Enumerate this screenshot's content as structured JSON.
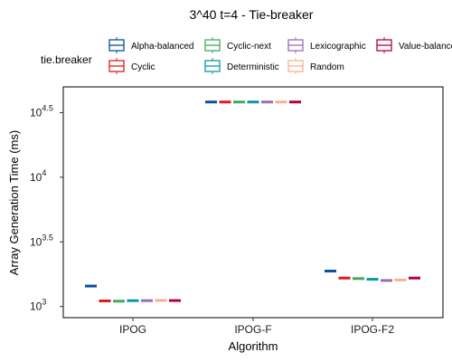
{
  "chart_data": {
    "type": "box",
    "title": "3^40 t=4 - Tie-breaker",
    "xlabel": "Algorithm",
    "ylabel": "Array Generation Time (ms)",
    "yscale": "log10",
    "ylim_ms": [
      820,
      50000
    ],
    "yticks": [
      {
        "value": 1000,
        "base": "10",
        "exp": "3"
      },
      {
        "value": 3162.28,
        "base": "10",
        "exp": "3.5"
      },
      {
        "value": 10000,
        "base": "10",
        "exp": "4"
      },
      {
        "value": 31622.78,
        "base": "10",
        "exp": "4.5"
      }
    ],
    "categories": [
      "IPOG",
      "IPOG-F",
      "IPOG-F2"
    ],
    "legend": {
      "title": "tie.breaker",
      "position": "top",
      "entries": [
        "Alpha-balanced",
        "Cyclic",
        "Cyclic-next",
        "Deterministic",
        "Lexicographic",
        "Random",
        "Value-balanced"
      ]
    },
    "series": [
      {
        "name": "Alpha-balanced",
        "color": "#08519c",
        "values": [
          1440,
          38200,
          1880
        ]
      },
      {
        "name": "Cyclic",
        "color": "#e31a1c",
        "values": [
          1105,
          38200,
          1660
        ]
      },
      {
        "name": "Cyclic-next",
        "color": "#41ab5d",
        "values": [
          1100,
          38200,
          1645
        ]
      },
      {
        "name": "Deterministic",
        "color": "#0a97a7",
        "values": [
          1110,
          38200,
          1625
        ]
      },
      {
        "name": "Lexicographic",
        "color": "#9e6bb5",
        "values": [
          1110,
          38200,
          1590
        ]
      },
      {
        "name": "Random",
        "color": "#fcb08a",
        "values": [
          1115,
          38200,
          1605
        ]
      },
      {
        "name": "Value-balanced",
        "color": "#b5003a",
        "values": [
          1112,
          38200,
          1660
        ]
      }
    ],
    "grid": false
  }
}
